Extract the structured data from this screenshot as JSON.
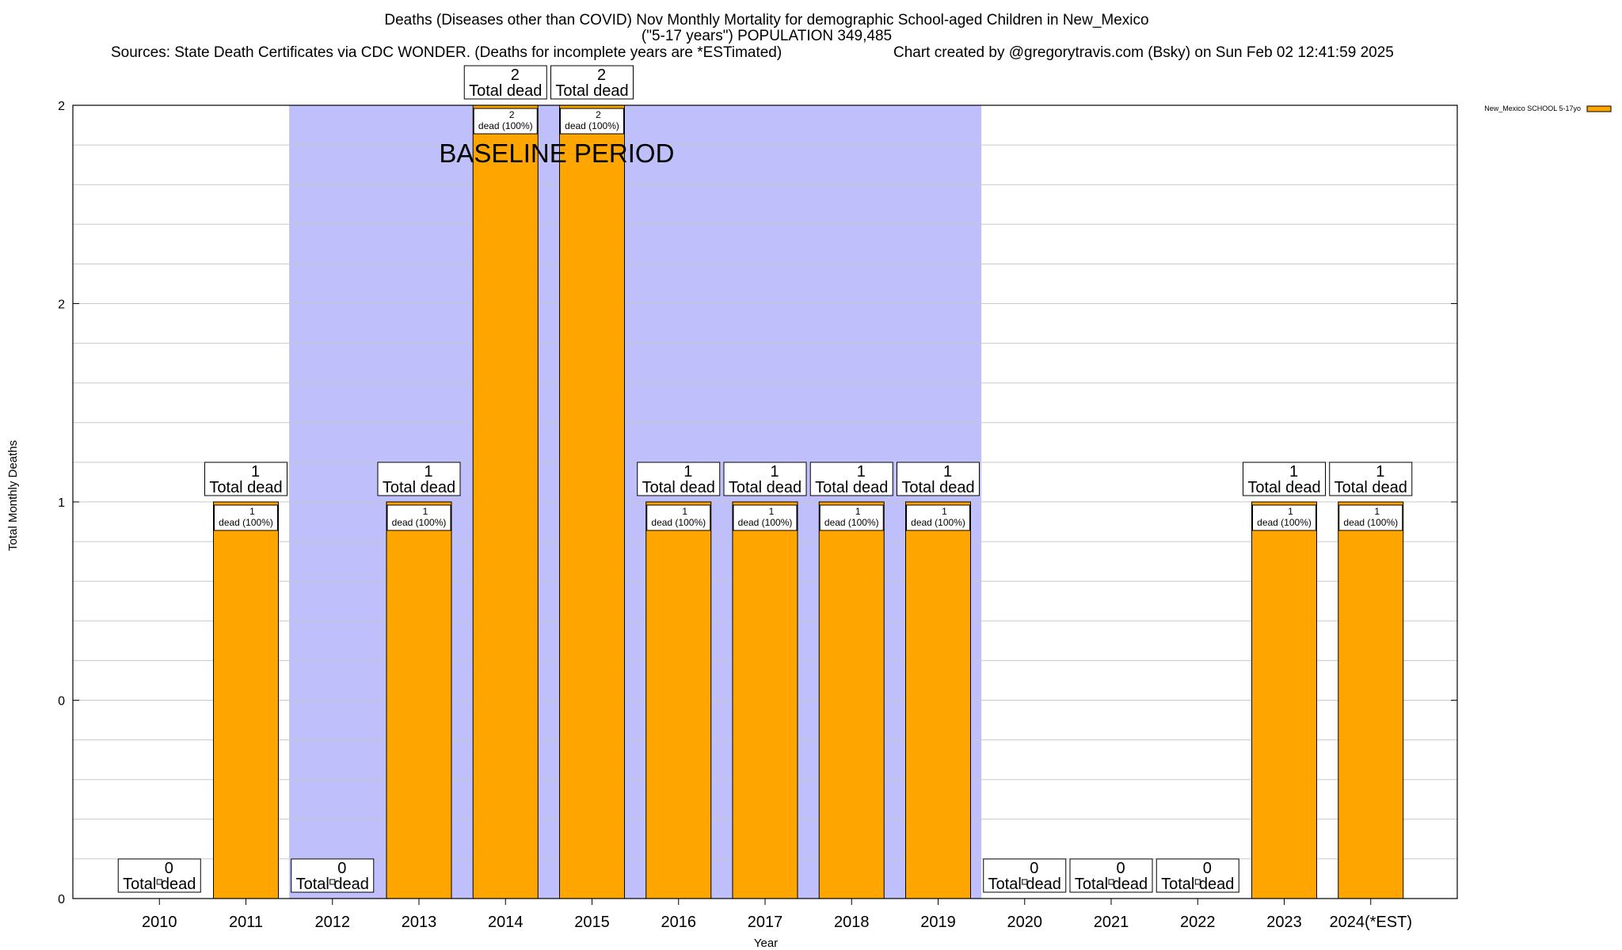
{
  "chart_data": {
    "type": "bar",
    "title_lines": [
      "Deaths (Diseases other than COVID) Nov Monthly Mortality for demographic School-aged Children in New_Mexico",
      "(\"5-17 years\") POPULATION 349,485"
    ],
    "source_text": "Sources: State Death Certificates via CDC WONDER. (Deaths for incomplete years are *ESTimated)",
    "credit_text": "Chart created by @gregorytravis.com (Bsky) on Sun Feb 02 12:41:59 2025",
    "xlabel": "Year",
    "ylabel": "Total Monthly Deaths",
    "y_tick_labels": [
      "0",
      "0",
      "1",
      "2",
      "2"
    ],
    "ylim": [
      0,
      2
    ],
    "grid": true,
    "legend_position": "top-right",
    "categories": [
      "2010",
      "2011",
      "2012",
      "2013",
      "2014",
      "2015",
      "2016",
      "2017",
      "2018",
      "2019",
      "2020",
      "2021",
      "2022",
      "2023",
      "2024(*EST)"
    ],
    "series": [
      {
        "name": "New_Mexico SCHOOL 5-17yo",
        "values": [
          0,
          1,
          0,
          1,
          2,
          2,
          1,
          1,
          1,
          1,
          0,
          0,
          0,
          1,
          1
        ],
        "color": "#ffa500"
      }
    ],
    "total_label_word": "Total dead",
    "inner_label_suffix": "dead (100%)",
    "baseline_period": {
      "label": "BASELINE PERIOD",
      "start": "2012",
      "end": "2019",
      "color": "#bfbffb"
    }
  }
}
